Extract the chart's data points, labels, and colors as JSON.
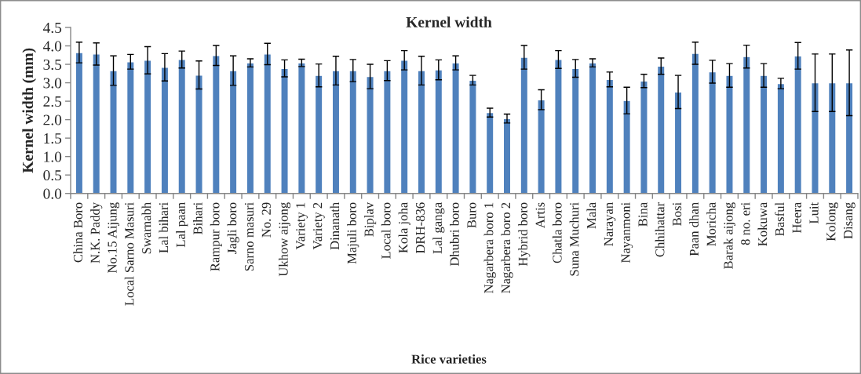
{
  "chart_data": {
    "type": "bar",
    "title": "Kernel width",
    "xlabel": "Rice varieties",
    "ylabel": "Kernel width (mm)",
    "categories": [
      "China Boro",
      "N.K. Paddy",
      "No.15 Aijung",
      "Local Sarno Masuri",
      "Swarnabh",
      "Lal bihari",
      "Lal paan",
      "Bihari",
      "Rampur boro",
      "Jagli boro",
      "Sarno masuri",
      "No. 29",
      "Ukhow aijong",
      "Variety 1",
      "Variety 2",
      "Dinanath",
      "Majuli boro",
      "Biplav",
      "Local boro",
      "Kola joha",
      "DRH-836",
      "Lal ganga",
      "Dhubri boro",
      "Buro",
      "Nagarbera boro 1",
      "Nagarbera boro 2",
      "Hybrid boro",
      "Artis",
      "Chatla boro",
      "Suna Muchuri",
      "Mala",
      "Narayan",
      "Nayanmoni",
      "Bina",
      "Chhihattar",
      "Bosi",
      "Paan dhan",
      "Moricha",
      "Barak aijong",
      "8 no. eri",
      "Kokuwa",
      "Basful",
      "Heera",
      "Luit",
      "Kolong",
      "Disang"
    ],
    "values": [
      3.82,
      3.78,
      3.33,
      3.57,
      3.61,
      3.42,
      3.63,
      3.21,
      3.74,
      3.33,
      3.54,
      3.78,
      3.39,
      3.54,
      3.2,
      3.33,
      3.33,
      3.17,
      3.33,
      3.61,
      3.33,
      3.35,
      3.54,
      3.07,
      2.19,
      2.03,
      3.69,
      2.54,
      3.63,
      3.39,
      3.54,
      3.09,
      2.52,
      3.05,
      3.45,
      2.75,
      3.8,
      3.3,
      3.2,
      3.71,
      3.2,
      2.98,
      3.73,
      3.0,
      3.0,
      3.0
    ],
    "errors": [
      0.28,
      0.3,
      0.4,
      0.2,
      0.37,
      0.37,
      0.23,
      0.38,
      0.27,
      0.4,
      0.11,
      0.29,
      0.23,
      0.1,
      0.31,
      0.39,
      0.3,
      0.33,
      0.27,
      0.26,
      0.39,
      0.27,
      0.19,
      0.13,
      0.12,
      0.12,
      0.32,
      0.27,
      0.24,
      0.24,
      0.11,
      0.2,
      0.36,
      0.18,
      0.22,
      0.45,
      0.3,
      0.31,
      0.32,
      0.31,
      0.32,
      0.14,
      0.36,
      0.78,
      0.78,
      0.89
    ],
    "color": "#4f81bd",
    "ylim": [
      0,
      4.5
    ],
    "yticks": [
      {
        "value": 0,
        "label": "0.0"
      },
      {
        "value": 0.5,
        "label": "0.5"
      },
      {
        "value": 1,
        "label": "1.0"
      },
      {
        "value": 1.5,
        "label": "1.5"
      },
      {
        "value": 2,
        "label": "2.0"
      },
      {
        "value": 2.5,
        "label": "2.5"
      },
      {
        "value": 3,
        "label": "3.0"
      },
      {
        "value": 3.5,
        "label": "3.5"
      },
      {
        "value": 4,
        "label": "4.0"
      },
      {
        "value": 4.5,
        "label": "4.5"
      }
    ]
  }
}
